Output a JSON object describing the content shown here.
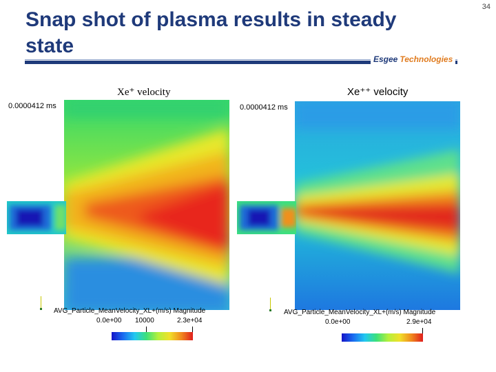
{
  "slide": {
    "title": "Snap shot of plasma results in steady state",
    "page_number": "34",
    "logo_part1": "Esgee",
    "logo_part2": "Technologies"
  },
  "panels": [
    {
      "title": "Xe⁺ velocity",
      "time_label": "0.0000412 ms",
      "legend_label": "AVG_Particle_MeanVelocity_XL+(m/s) Magnitude",
      "tick_labels": [
        "0.0e+00",
        "10000",
        "2.3e+04"
      ]
    },
    {
      "title": "Xe⁺⁺ velocity",
      "time_label": "0.0000412 ms",
      "legend_label": "AVG_Particle_MeanVelocity_XL+(m/s) Magnitude",
      "tick_labels": [
        "0.0e+00",
        "2.9e+04"
      ]
    }
  ],
  "colors": {
    "title": "#1f3a7a",
    "rule": "#1f3a7a",
    "logo_accent": "#e07c20",
    "colormap": [
      "#1414c8",
      "#1a6cf0",
      "#22c8f0",
      "#3ce07a",
      "#b4f03c",
      "#f0e02a",
      "#f08a1e",
      "#e01e1e"
    ]
  }
}
